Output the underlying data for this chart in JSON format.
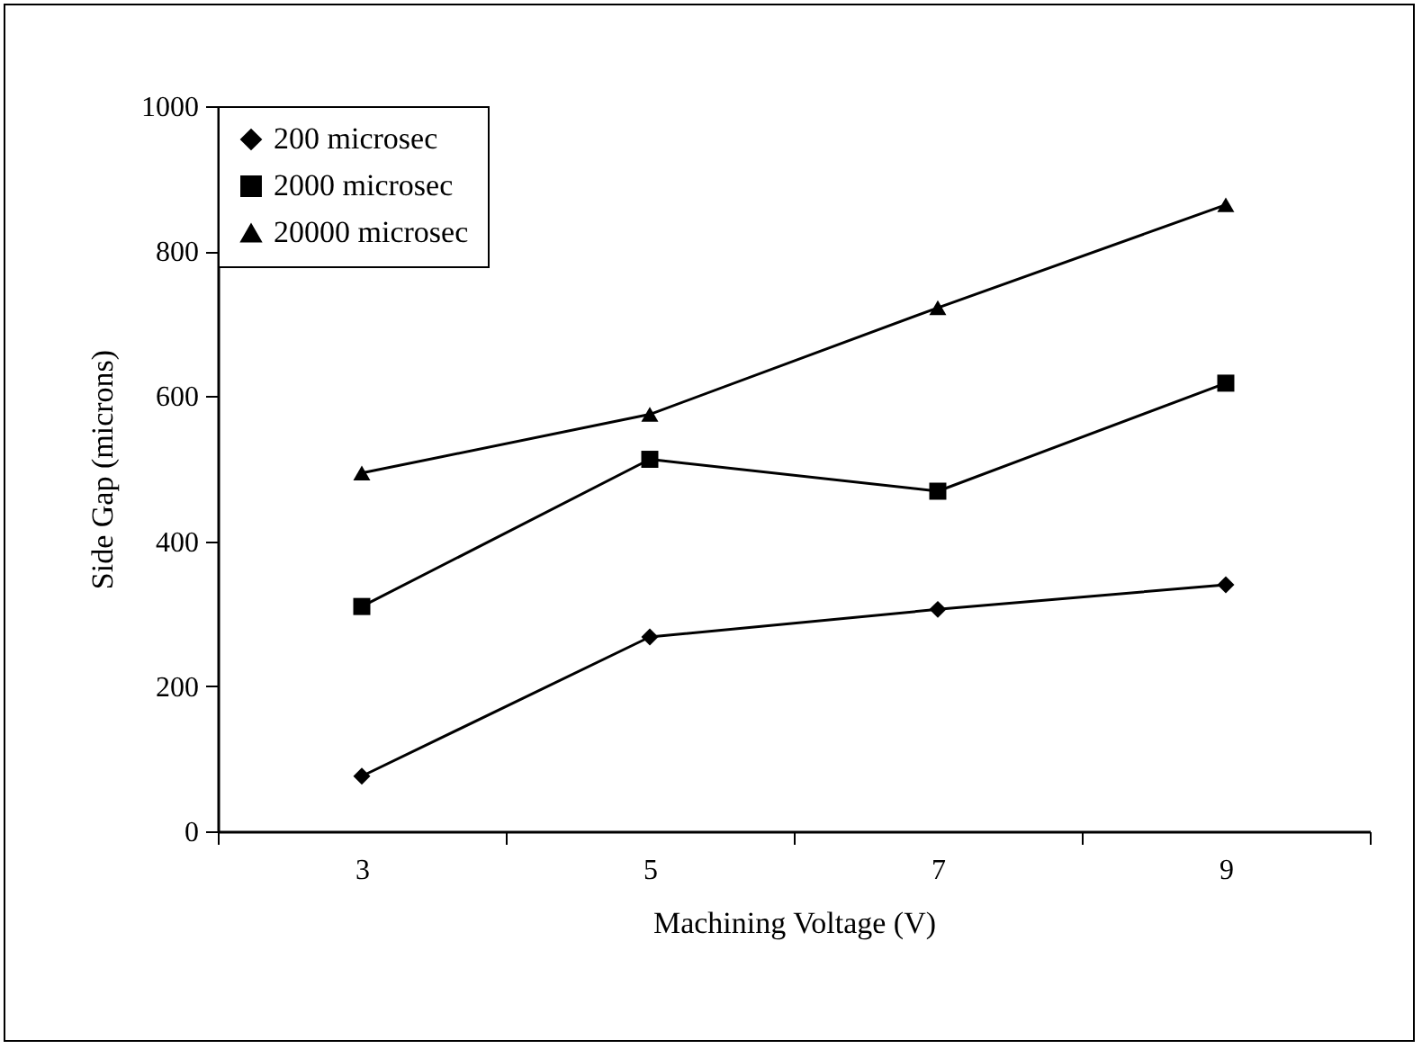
{
  "chart_data": {
    "type": "line",
    "xlabel": "Machining Voltage (V)",
    "ylabel": "Side Gap (microns)",
    "categories": [
      "3",
      "5",
      "7",
      "9"
    ],
    "series": [
      {
        "name": "200 microsec",
        "color": "#000000",
        "marker": "diamond",
        "values": [
          76,
          268,
          306,
          340
        ]
      },
      {
        "name": "2000 microsec",
        "color": "#000000",
        "marker": "square",
        "values": [
          310,
          513,
          469,
          618
        ]
      },
      {
        "name": "20000 microsec",
        "color": "#000000",
        "marker": "triangle",
        "values": [
          494,
          575,
          722,
          864
        ]
      }
    ],
    "ylim": [
      0,
      1000
    ],
    "yticks": [
      0,
      200,
      400,
      600,
      800,
      1000
    ],
    "grid": false,
    "legend": "top left",
    "line_style": "solid"
  }
}
